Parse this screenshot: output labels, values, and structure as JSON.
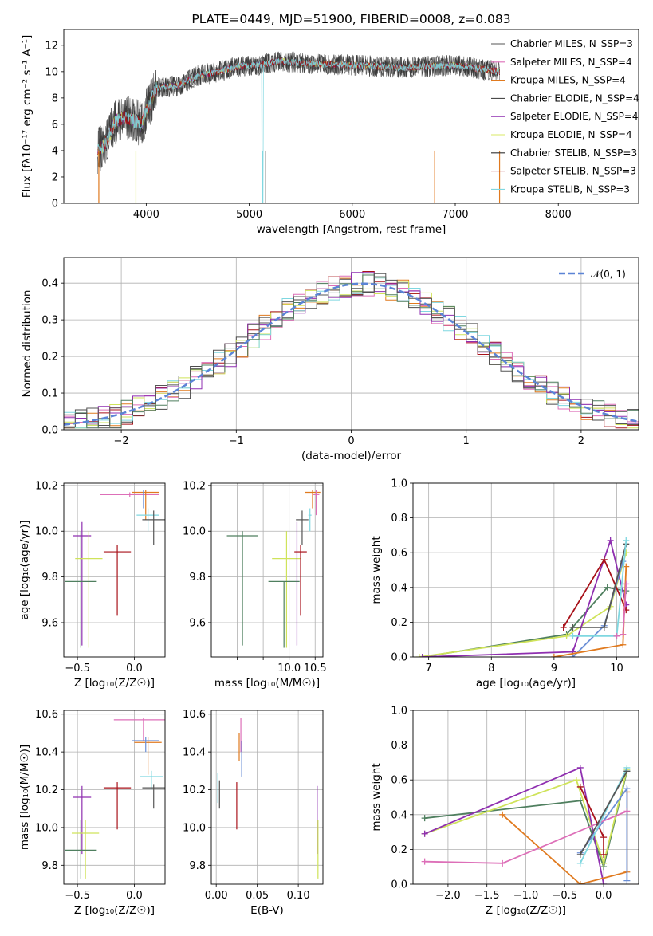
{
  "colors": [
    "#555555",
    "#dd6fb8",
    "#e07a1f",
    "#4a4a4a",
    "#8f2fb0",
    "#d8e864",
    "#333333",
    "#a8121a",
    "#7fd7e0",
    "#6b8fd6",
    "#cfe35a",
    "#4f7f5f"
  ],
  "chart_data": [
    {
      "id": "spectrum",
      "type": "line",
      "title": "PLATE=0449, MJD=51900, FIBERID=0008, z=0.083",
      "xlabel": "wavelength [Angstrom, rest frame]",
      "ylabel": "Flux [fλ10⁻¹⁷ erg cm⁻² s⁻¹ A⁻¹]",
      "xlim": [
        3200,
        8780
      ],
      "ylim": [
        0,
        13.2
      ],
      "xticks": [
        4000,
        5000,
        6000,
        7000,
        8000
      ],
      "yticks": [
        0,
        2,
        4,
        6,
        8,
        10,
        12
      ],
      "grid": false,
      "legend_position": "right",
      "continuum": {
        "x": [
          3530,
          3600,
          3700,
          3800,
          3950,
          4100,
          4300,
          4500,
          4700,
          4900,
          5100,
          5300,
          5600,
          6000,
          6500,
          7000,
          7430
        ],
        "y": [
          4.0,
          4.5,
          6.2,
          6.6,
          6.0,
          8.8,
          8.9,
          9.7,
          10.0,
          10.4,
          10.5,
          10.8,
          10.6,
          10.5,
          10.3,
          10.5,
          10.0
        ]
      },
      "data_range": [
        3530,
        7430
      ],
      "series": [
        {
          "name": "Chabrier MILES, N_SSP=3",
          "color": "#555555"
        },
        {
          "name": "Salpeter MILES, N_SSP=4",
          "color": "#dd6fb8"
        },
        {
          "name": "Kroupa MILES, N_SSP=4",
          "color": "#e07a1f"
        },
        {
          "name": "Chabrier ELODIE, N_SSP=4",
          "color": "#4a4a4a"
        },
        {
          "name": "Salpeter ELODIE, N_SSP=4",
          "color": "#8f2fb0"
        },
        {
          "name": "Kroupa ELODIE, N_SSP=4",
          "color": "#d8e864"
        },
        {
          "name": "Chabrier STELIB, N_SSP=3",
          "color": "#333333"
        },
        {
          "name": "Salpeter STELIB, N_SSP=3",
          "color": "#a8121a"
        },
        {
          "name": "Kroupa STELIB, N_SSP=3",
          "color": "#7fd7e0"
        }
      ]
    },
    {
      "id": "residuals",
      "type": "line",
      "xlabel": "(data-model)/error",
      "ylabel": "Normed distribution",
      "xlim": [
        -2.5,
        2.5
      ],
      "ylim": [
        0,
        0.47
      ],
      "xticks": [
        -2,
        -1,
        0,
        1,
        2
      ],
      "yticks": [
        0.0,
        0.1,
        0.2,
        0.3,
        0.4
      ],
      "grid": true,
      "legend_position": "top-right",
      "reference": {
        "name": "𝒩(0, 1)",
        "mean": 0.1,
        "sigma": 1.0,
        "color": "#5b84d6"
      }
    },
    {
      "id": "z-age",
      "type": "scatter",
      "xlabel": "Z [log₁₀(Z/Z☉)]",
      "ylabel": "age  [log₁₀(age/yr)]",
      "xlim": [
        -0.62,
        0.27
      ],
      "ylim": [
        9.45,
        10.21
      ],
      "xticks": [
        -0.5,
        0.0
      ],
      "yticks": [
        9.6,
        9.8,
        10.0,
        10.2
      ],
      "grid": true,
      "points": [
        {
          "x": -0.46,
          "y": 9.98,
          "xerr": 0.08,
          "ylo": 9.5,
          "yhi": 10.04,
          "color": "#8f2fb0"
        },
        {
          "x": -0.4,
          "y": 9.88,
          "xerr": 0.12,
          "ylo": 9.49,
          "yhi": 10.0,
          "color": "#cfe35a"
        },
        {
          "x": -0.47,
          "y": 9.78,
          "xerr": 0.14,
          "ylo": 9.49,
          "yhi": 10.0,
          "color": "#4f7f5f"
        },
        {
          "x": -0.15,
          "y": 9.91,
          "xerr": 0.12,
          "ylo": 9.63,
          "yhi": 9.94,
          "color": "#a8121a"
        },
        {
          "x": -0.04,
          "y": 10.16,
          "xerr": 0.26,
          "ylo": 10.15,
          "yhi": 10.17,
          "color": "#dd6fb8"
        },
        {
          "x": 0.1,
          "y": 10.17,
          "xerr": 0.12,
          "ylo": 10.05,
          "yhi": 10.18,
          "color": "#e07a1f"
        },
        {
          "x": 0.12,
          "y": 10.07,
          "xerr": 0.1,
          "ylo": 10.0,
          "yhi": 10.1,
          "color": "#7fd7e0"
        },
        {
          "x": 0.17,
          "y": 10.05,
          "xerr": 0.1,
          "ylo": 9.94,
          "yhi": 10.09,
          "color": "#555555"
        },
        {
          "x": 0.08,
          "y": 10.16,
          "xerr": 0.0,
          "ylo": 10.1,
          "yhi": 10.18,
          "color": "#6b8fd6"
        }
      ]
    },
    {
      "id": "mass-age",
      "type": "scatter",
      "xlabel": "mass [log₁₀(M/M☉)]",
      "xlim": [
        8.5,
        10.65
      ],
      "ylim": [
        9.45,
        10.21
      ],
      "xticks": [
        9.0,
        9.5,
        10.0,
        10.5
      ],
      "xticklabels": [
        "",
        "",
        "10.0",
        "10.5"
      ],
      "yticks": [
        9.6,
        9.8,
        10.0,
        10.2
      ],
      "grid": true,
      "points": [
        {
          "x": 9.1,
          "y": 9.98,
          "xerr": 0.3,
          "ylo": 9.5,
          "yhi": 10.0,
          "color": "#4f7f5f"
        },
        {
          "x": 9.95,
          "y": 9.88,
          "xerr": 0.28,
          "ylo": 9.49,
          "yhi": 10.0,
          "color": "#cfe35a"
        },
        {
          "x": 9.9,
          "y": 9.78,
          "xerr": 0.3,
          "ylo": 9.49,
          "yhi": 9.78,
          "color": "#4f7f5f"
        },
        {
          "x": 10.15,
          "y": 9.98,
          "xerr": 0.0,
          "ylo": 9.5,
          "yhi": 10.04,
          "color": "#8f2fb0"
        },
        {
          "x": 10.22,
          "y": 9.91,
          "xerr": 0.12,
          "ylo": 9.63,
          "yhi": 9.94,
          "color": "#a8121a"
        },
        {
          "x": 10.25,
          "y": 10.05,
          "xerr": 0.12,
          "ylo": 9.94,
          "yhi": 10.09,
          "color": "#555555"
        },
        {
          "x": 10.45,
          "y": 10.17,
          "xerr": 0.15,
          "ylo": 10.1,
          "yhi": 10.18,
          "color": "#e07a1f"
        },
        {
          "x": 10.52,
          "y": 10.16,
          "xerr": 0.06,
          "ylo": 10.07,
          "yhi": 10.18,
          "color": "#dd6fb8"
        },
        {
          "x": 10.4,
          "y": 10.07,
          "xerr": 0.03,
          "ylo": 10.0,
          "yhi": 10.1,
          "color": "#7fd7e0"
        }
      ]
    },
    {
      "id": "age-weight",
      "type": "line",
      "xlabel": "age  [log₁₀(age/yr)]",
      "ylabel": "mass weight",
      "xlim": [
        6.75,
        10.35
      ],
      "ylim": [
        0,
        1.0
      ],
      "xticks": [
        7,
        8,
        9,
        10
      ],
      "yticks": [
        0.0,
        0.2,
        0.4,
        0.6,
        0.8,
        1.0
      ],
      "grid": true,
      "series": [
        {
          "color": "#4f7f5f",
          "x": [
            6.9,
            9.2,
            9.85,
            10.15
          ],
          "y": [
            0.0,
            0.13,
            0.4,
            0.38
          ]
        },
        {
          "color": "#cfe35a",
          "x": [
            6.85,
            9.2,
            9.9,
            10.15
          ],
          "y": [
            0.0,
            0.12,
            0.29,
            0.6
          ]
        },
        {
          "color": "#8f2fb0",
          "x": [
            6.9,
            9.3,
            9.9,
            10.15
          ],
          "y": [
            0.0,
            0.03,
            0.67,
            0.3
          ]
        },
        {
          "color": "#a8121a",
          "x": [
            9.15,
            9.8,
            10.15
          ],
          "y": [
            0.17,
            0.56,
            0.27
          ]
        },
        {
          "color": "#6b8fd6",
          "x": [
            9.3,
            9.8,
            10.1
          ],
          "y": [
            0.0,
            0.18,
            0.55
          ]
        },
        {
          "color": "#e07a1f",
          "x": [
            9.0,
            10.1,
            10.15
          ],
          "y": [
            0.0,
            0.07,
            0.52
          ]
        },
        {
          "color": "#555555",
          "x": [
            9.3,
            9.8,
            10.15
          ],
          "y": [
            0.17,
            0.17,
            0.65
          ]
        },
        {
          "color": "#7fd7e0",
          "x": [
            9.3,
            10.0,
            10.15
          ],
          "y": [
            0.12,
            0.12,
            0.67
          ]
        },
        {
          "color": "#dd6fb8",
          "x": [
            10.0,
            10.1,
            10.15
          ],
          "y": [
            0.12,
            0.13,
            0.42
          ]
        }
      ]
    },
    {
      "id": "z-mass",
      "type": "scatter",
      "xlabel": "Z [log₁₀(Z/Z☉)]",
      "ylabel": "mass [log₁₀(M/M☉)]",
      "xlim": [
        -0.62,
        0.27
      ],
      "ylim": [
        9.7,
        10.62
      ],
      "xticks": [
        -0.5,
        0.0
      ],
      "yticks": [
        9.8,
        10.0,
        10.2,
        10.4,
        10.6
      ],
      "grid": true,
      "points": [
        {
          "x": -0.46,
          "y": 10.16,
          "xerr": 0.08,
          "ylo": 9.86,
          "yhi": 10.22,
          "color": "#8f2fb0"
        },
        {
          "x": -0.43,
          "y": 9.97,
          "xerr": 0.12,
          "ylo": 9.73,
          "yhi": 10.04,
          "color": "#cfe35a"
        },
        {
          "x": -0.47,
          "y": 9.88,
          "xerr": 0.14,
          "ylo": 9.73,
          "yhi": 10.04,
          "color": "#4f7f5f"
        },
        {
          "x": -0.15,
          "y": 10.21,
          "xerr": 0.12,
          "ylo": 9.99,
          "yhi": 10.24,
          "color": "#a8121a"
        },
        {
          "x": 0.08,
          "y": 10.57,
          "xerr": 0.26,
          "ylo": 10.46,
          "yhi": 10.58,
          "color": "#dd6fb8"
        },
        {
          "x": 0.12,
          "y": 10.45,
          "xerr": 0.12,
          "ylo": 10.28,
          "yhi": 10.48,
          "color": "#e07a1f"
        },
        {
          "x": 0.15,
          "y": 10.27,
          "xerr": 0.1,
          "ylo": 10.2,
          "yhi": 10.3,
          "color": "#7fd7e0"
        },
        {
          "x": 0.17,
          "y": 10.21,
          "xerr": 0.1,
          "ylo": 10.1,
          "yhi": 10.23,
          "color": "#555555"
        },
        {
          "x": 0.1,
          "y": 10.46,
          "xerr": 0.12,
          "ylo": 10.4,
          "yhi": 10.48,
          "color": "#6b8fd6"
        }
      ]
    },
    {
      "id": "ebv-mass",
      "type": "scatter",
      "xlabel": "E(B-V)",
      "xlim": [
        -0.006,
        0.13
      ],
      "ylim": [
        9.7,
        10.62
      ],
      "xticks": [
        0.0,
        0.05,
        0.1
      ],
      "xticklabels": [
        "0.00",
        "0.05",
        "0.10"
      ],
      "yticks": [
        9.8,
        10.0,
        10.2,
        10.4,
        10.6
      ],
      "grid": true,
      "points": [
        {
          "x": 0.002,
          "y": 10.21,
          "xerr": 0.0,
          "ylo": 10.13,
          "yhi": 10.29,
          "color": "#7fd7e0"
        },
        {
          "x": 0.004,
          "y": 10.21,
          "xerr": 0.0,
          "ylo": 10.1,
          "yhi": 10.25,
          "color": "#555555"
        },
        {
          "x": 0.025,
          "y": 10.21,
          "xerr": 0.0,
          "ylo": 9.99,
          "yhi": 10.24,
          "color": "#a8121a"
        },
        {
          "x": 0.028,
          "y": 10.45,
          "xerr": 0.0,
          "ylo": 10.35,
          "yhi": 10.5,
          "color": "#e07a1f"
        },
        {
          "x": 0.03,
          "y": 10.5,
          "xerr": 0.0,
          "ylo": 10.4,
          "yhi": 10.58,
          "color": "#dd6fb8"
        },
        {
          "x": 0.031,
          "y": 10.4,
          "xerr": 0.0,
          "ylo": 10.27,
          "yhi": 10.46,
          "color": "#6b8fd6"
        },
        {
          "x": 0.123,
          "y": 10.16,
          "xerr": 0.0,
          "ylo": 9.86,
          "yhi": 10.22,
          "color": "#8f2fb0"
        },
        {
          "x": 0.124,
          "y": 9.97,
          "xerr": 0.0,
          "ylo": 9.73,
          "yhi": 10.04,
          "color": "#cfe35a"
        }
      ]
    },
    {
      "id": "z-weight",
      "type": "line",
      "xlabel": "Z [log₁₀(Z/Z☉)]",
      "ylabel": "mass weight",
      "xlim": [
        -2.45,
        0.45
      ],
      "ylim": [
        0,
        1.0
      ],
      "xticks": [
        -2.0,
        -1.5,
        -1.0,
        -0.5,
        0.0
      ],
      "yticks": [
        0.0,
        0.2,
        0.4,
        0.6,
        0.8,
        1.0
      ],
      "grid": true,
      "series": [
        {
          "color": "#4f7f5f",
          "x": [
            -2.3,
            -0.3,
            0.0,
            0.3
          ],
          "y": [
            0.38,
            0.48,
            0.1,
            0.65
          ]
        },
        {
          "color": "#cfe35a",
          "x": [
            -2.3,
            -0.35,
            0.0,
            0.3
          ],
          "y": [
            0.29,
            0.6,
            0.12,
            0.66
          ]
        },
        {
          "color": "#8f2fb0",
          "x": [
            -2.3,
            -0.3,
            0.0
          ],
          "y": [
            0.29,
            0.67,
            0.0
          ]
        },
        {
          "color": "#e07a1f",
          "x": [
            -1.3,
            -0.3,
            0.3,
            0.3
          ],
          "y": [
            0.4,
            0.0,
            0.07,
            0.53
          ]
        },
        {
          "color": "#a8121a",
          "x": [
            -0.3,
            0.0,
            0.0
          ],
          "y": [
            0.56,
            0.27,
            0.17
          ]
        },
        {
          "color": "#6b8fd6",
          "x": [
            -0.3,
            0.3,
            0.3
          ],
          "y": [
            0.18,
            0.55,
            0.02
          ]
        },
        {
          "color": "#dd6fb8",
          "x": [
            -2.3,
            -1.3,
            0.3
          ],
          "y": [
            0.13,
            0.12,
            0.42
          ]
        },
        {
          "color": "#7fd7e0",
          "x": [
            -0.3,
            0.3
          ],
          "y": [
            0.12,
            0.67
          ]
        },
        {
          "color": "#555555",
          "x": [
            -0.3,
            0.3
          ],
          "y": [
            0.17,
            0.65
          ]
        }
      ]
    }
  ]
}
